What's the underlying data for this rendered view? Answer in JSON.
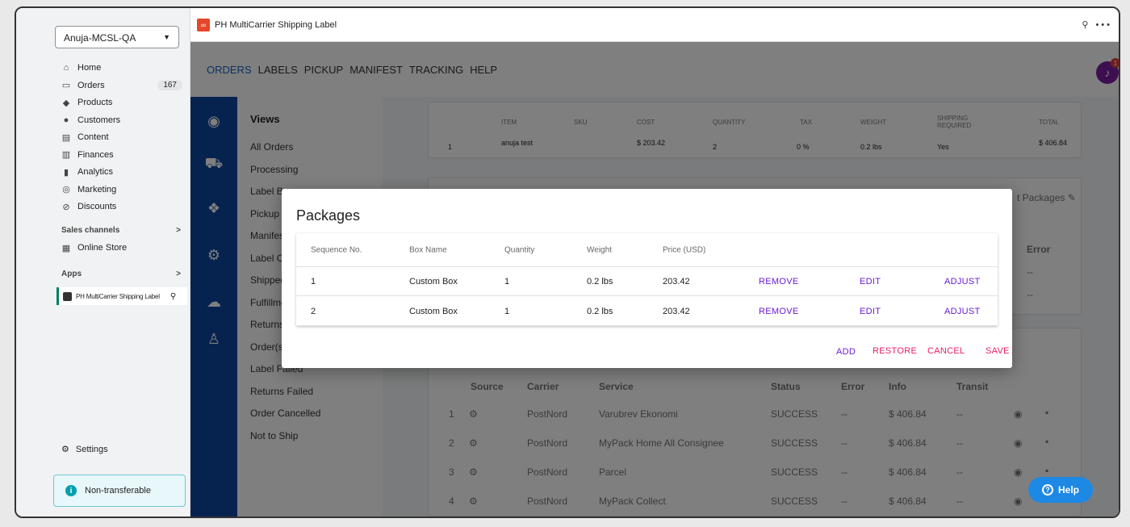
{
  "sidebar": {
    "store": "Anuja-MCSL-QA",
    "items": [
      {
        "label": "Home",
        "icon": "home-icon",
        "glyph": "⌂"
      },
      {
        "label": "Orders",
        "icon": "orders-icon",
        "glyph": "▭",
        "badge": "167"
      },
      {
        "label": "Products",
        "icon": "tag-icon",
        "glyph": "◆"
      },
      {
        "label": "Customers",
        "icon": "person-icon",
        "glyph": "●"
      },
      {
        "label": "Content",
        "icon": "content-icon",
        "glyph": "▤"
      },
      {
        "label": "Finances",
        "icon": "bank-icon",
        "glyph": "▥"
      },
      {
        "label": "Analytics",
        "icon": "bar-chart-icon",
        "glyph": "▮"
      },
      {
        "label": "Marketing",
        "icon": "target-icon",
        "glyph": "◎"
      },
      {
        "label": "Discounts",
        "icon": "discount-icon",
        "glyph": "⊘"
      }
    ],
    "sales_channels": "Sales channels",
    "online_store": "Online Store",
    "apps": "Apps",
    "app_item": "PH MultiCarrier Shipping Label",
    "settings": "Settings",
    "non_transferable": "Non-transferable"
  },
  "app_bar": {
    "title": "PH MultiCarrier Shipping Label",
    "more": "•••"
  },
  "topnav": {
    "tabs": [
      "ORDERS",
      "LABELS",
      "PICKUP",
      "MANIFEST",
      "TRACKING",
      "HELP"
    ],
    "active": "ORDERS",
    "notifications": "1"
  },
  "views": {
    "title": "Views",
    "items": [
      "All Orders",
      "Processing",
      "Label Ba",
      "Pickup",
      "Manifes",
      "Label Cr",
      "Shipped",
      "Fulfillme",
      "Returns",
      "Order(s",
      "Label Failed",
      "Returns Failed",
      "Order Cancelled",
      "Not to Ship"
    ]
  },
  "order_items": {
    "headers": [
      "ITEM",
      "SKU",
      "COST",
      "QUANTITY",
      "TAX",
      "WEIGHT",
      "SHIPPING REQUIRED",
      "TOTAL"
    ],
    "row": {
      "index": "1",
      "item": "anuja test",
      "sku": "",
      "cost": "$ 203.42",
      "quantity": "2",
      "tax": "0 %",
      "weight": "0.2 lbs",
      "shipping_required": "Yes",
      "total": "$ 406.84"
    }
  },
  "packages_card": {
    "edit_label": "t Packages",
    "error_header": "Error",
    "error_values": [
      "--",
      "--"
    ]
  },
  "rates": {
    "headers": [
      "Source",
      "Carrier",
      "Service",
      "Status",
      "Error",
      "Info",
      "Transit"
    ],
    "rows": [
      {
        "n": "1",
        "carrier": "PostNord",
        "service": "Varubrev Ekonomi",
        "status": "SUCCESS",
        "error": "--",
        "info": "$ 406.84",
        "transit": "--"
      },
      {
        "n": "2",
        "carrier": "PostNord",
        "service": "MyPack Home All Consignee",
        "status": "SUCCESS",
        "error": "--",
        "info": "$ 406.84",
        "transit": "--"
      },
      {
        "n": "3",
        "carrier": "PostNord",
        "service": "Parcel",
        "status": "SUCCESS",
        "error": "--",
        "info": "$ 406.84",
        "transit": "--"
      },
      {
        "n": "4",
        "carrier": "PostNord",
        "service": "MyPack Collect",
        "status": "SUCCESS",
        "error": "--",
        "info": "$ 406.84",
        "transit": "--"
      }
    ]
  },
  "modal": {
    "title": "Packages",
    "headers": {
      "seq": "Sequence No.",
      "box": "Box Name",
      "qty": "Quantity",
      "weight": "Weight",
      "price": "Price (USD)"
    },
    "rows": [
      {
        "seq": "1",
        "box": "Custom Box",
        "qty": "1",
        "weight": "0.2 lbs",
        "price": "203.42"
      },
      {
        "seq": "2",
        "box": "Custom Box",
        "qty": "1",
        "weight": "0.2 lbs",
        "price": "203.42"
      }
    ],
    "row_actions": {
      "remove": "REMOVE",
      "edit": "EDIT",
      "adjust": "ADJUST"
    },
    "actions": {
      "add": "ADD",
      "restore": "RESTORE",
      "cancel": "CANCEL",
      "save": "SAVE"
    }
  },
  "help": "Help",
  "colors": {
    "accent_purple": "#6a1bd6",
    "accent_pink": "#e91e63",
    "nav_blue": "#0d47a1",
    "help_blue": "#1e88e5"
  }
}
